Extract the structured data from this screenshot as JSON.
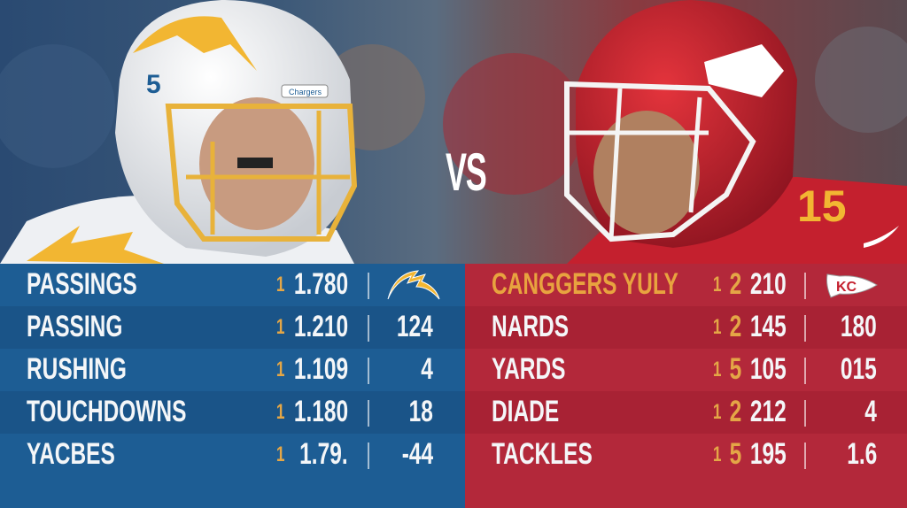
{
  "vs_label": "VS",
  "chargers_helmet": {
    "number": "5",
    "brand": "Chargers"
  },
  "colors": {
    "chargers_blue": "#1d5d94",
    "chiefs_red": "#b3283a",
    "gold": "#e8a33f"
  },
  "left_table": {
    "logo": "chargers-bolt-logo",
    "rows": [
      {
        "label": "PASSINGS",
        "prefix": "1",
        "value": "1.780",
        "right": ""
      },
      {
        "label": "PASSING",
        "prefix": "1",
        "value": "1.210",
        "right": "124"
      },
      {
        "label": "RUSHING",
        "prefix": "1",
        "value": "1.109",
        "right": "4"
      },
      {
        "label": "TOUCHDOWNS",
        "prefix": "1",
        "value": "1.180",
        "right": "18"
      },
      {
        "label": "YACBES",
        "prefix": "1",
        "value": "1.79.",
        "right": "-44"
      }
    ]
  },
  "right_table": {
    "logo": "chiefs-arrowhead-logo",
    "logo_text": "KC",
    "rows": [
      {
        "label": "CANGGERS YULY",
        "prefix": "1",
        "prefix2": "2",
        "value": "210",
        "right": ""
      },
      {
        "label": "NARDS",
        "prefix": "1",
        "prefix2": "2",
        "value": "145",
        "right": "180"
      },
      {
        "label": "YARDS",
        "prefix": "1",
        "prefix2": "5",
        "value": "105",
        "right": "015"
      },
      {
        "label": "DIADE",
        "prefix": "1",
        "prefix2": "2",
        "value": "212",
        "right": "4"
      },
      {
        "label": "TACKLES",
        "prefix": "1",
        "prefix2": "5",
        "value": "195",
        "right": "1.6"
      }
    ]
  }
}
